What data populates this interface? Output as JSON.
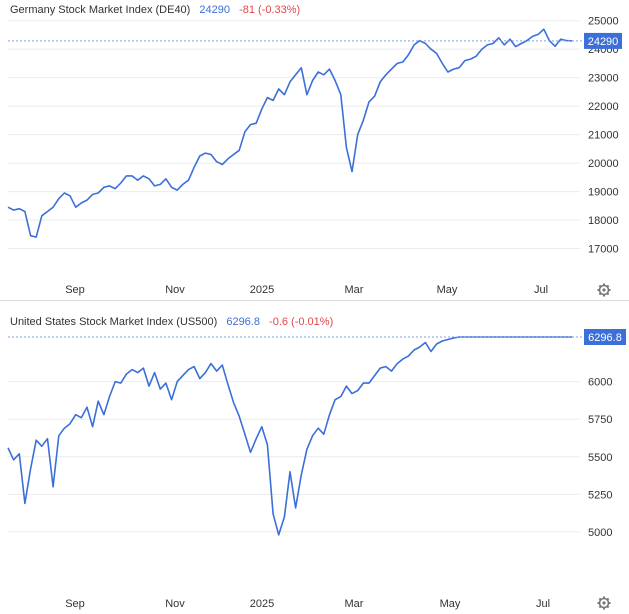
{
  "colors": {
    "line": "#3b6fd9",
    "grid": "#ebebeb",
    "ref": "#7c9fe6",
    "badge": "#3b6fd9",
    "change": "#e0464a"
  },
  "panels": [
    {
      "name": "Germany Stock Market Index (DE40)",
      "price": "24290",
      "change": "-81 (-0.33%)",
      "badge": "24290",
      "settings_icon": "gear-icon"
    },
    {
      "name": "United States Stock Market Index (US500)",
      "price": "6296.8",
      "change": "-0.6 (-0.01%)",
      "badge": "6296.8",
      "settings_icon": "gear-icon"
    }
  ],
  "chart_data": [
    {
      "type": "line",
      "title": "Germany Stock Market Index (DE40)",
      "x_tick_labels": [
        "Sep",
        "Nov",
        "2025",
        "Mar",
        "May",
        "Jul"
      ],
      "y_ticks": [
        17000,
        18000,
        19000,
        20000,
        21000,
        22000,
        23000,
        24000,
        25000
      ],
      "ylim": [
        16000,
        25200
      ],
      "last_value": 24290,
      "grid": true,
      "series": [
        {
          "x": [
            0.0,
            0.01,
            0.02,
            0.03,
            0.04,
            0.05,
            0.06,
            0.07,
            0.08,
            0.09,
            0.1,
            0.11,
            0.12,
            0.13,
            0.14,
            0.15,
            0.16,
            0.17,
            0.18,
            0.19,
            0.2,
            0.21,
            0.22,
            0.23,
            0.24,
            0.25,
            0.26,
            0.27,
            0.28,
            0.29,
            0.3,
            0.31,
            0.32,
            0.33,
            0.34,
            0.35,
            0.36,
            0.37,
            0.38,
            0.39,
            0.4,
            0.41,
            0.42,
            0.43,
            0.44,
            0.45,
            0.46,
            0.47,
            0.48,
            0.49,
            0.5,
            0.51,
            0.52,
            0.53,
            0.54,
            0.55,
            0.56,
            0.57,
            0.58,
            0.59,
            0.6,
            0.61,
            0.62,
            0.63,
            0.64,
            0.65,
            0.66,
            0.67,
            0.68,
            0.69,
            0.7,
            0.71,
            0.72,
            0.73,
            0.74,
            0.75,
            0.76,
            0.77,
            0.78,
            0.79,
            0.8,
            0.81,
            0.82,
            0.83,
            0.84,
            0.85,
            0.86,
            0.87,
            0.88,
            0.89,
            0.9,
            0.91,
            0.92,
            0.93,
            0.94,
            0.95,
            0.96,
            0.97,
            0.98,
            0.99,
            1.0
          ],
          "y": [
            18450,
            18350,
            18400,
            18300,
            17450,
            17400,
            18150,
            18300,
            18450,
            18750,
            18950,
            18850,
            18450,
            18600,
            18700,
            18900,
            18950,
            19150,
            19200,
            19100,
            19300,
            19550,
            19550,
            19400,
            19550,
            19450,
            19200,
            19250,
            19450,
            19150,
            19050,
            19250,
            19400,
            19850,
            20250,
            20350,
            20300,
            20050,
            19950,
            20150,
            20300,
            20450,
            21100,
            21350,
            21400,
            21900,
            22300,
            22200,
            22600,
            22400,
            22850,
            23100,
            23350,
            22400,
            22900,
            23200,
            23100,
            23300,
            22900,
            22400,
            20550,
            19700,
            21000,
            21500,
            22150,
            22350,
            22850,
            23100,
            23300,
            23500,
            23550,
            23800,
            24150,
            24300,
            24200,
            24000,
            23850,
            23500,
            23200,
            23300,
            23350,
            23600,
            23650,
            23750,
            24000,
            24150,
            24200,
            24400,
            24150,
            24350,
            24090,
            24200,
            24300,
            24450,
            24520,
            24700,
            24300,
            24100,
            24350,
            24300,
            24290
          ]
        }
      ]
    },
    {
      "type": "line",
      "title": "United States Stock Market Index (US500)",
      "x_tick_labels": [
        "Sep",
        "Nov",
        "2025",
        "Mar",
        "May",
        "Jul"
      ],
      "y_ticks": [
        5000,
        5250,
        5500,
        5750,
        6000
      ],
      "ylim": [
        4800,
        6350
      ],
      "last_value": 6296.8,
      "grid": true,
      "series": [
        {
          "x": [
            0.0,
            0.01,
            0.02,
            0.03,
            0.04,
            0.05,
            0.06,
            0.07,
            0.08,
            0.09,
            0.1,
            0.11,
            0.12,
            0.13,
            0.14,
            0.15,
            0.16,
            0.17,
            0.18,
            0.19,
            0.2,
            0.21,
            0.22,
            0.23,
            0.24,
            0.25,
            0.26,
            0.27,
            0.28,
            0.29,
            0.3,
            0.31,
            0.32,
            0.33,
            0.34,
            0.35,
            0.36,
            0.37,
            0.38,
            0.39,
            0.4,
            0.41,
            0.42,
            0.43,
            0.44,
            0.45,
            0.46,
            0.47,
            0.48,
            0.49,
            0.5,
            0.51,
            0.52,
            0.53,
            0.54,
            0.55,
            0.56,
            0.57,
            0.58,
            0.59,
            0.6,
            0.61,
            0.62,
            0.63,
            0.64,
            0.65,
            0.66,
            0.67,
            0.68,
            0.69,
            0.7,
            0.71,
            0.72,
            0.73,
            0.74,
            0.75,
            0.76,
            0.77,
            0.78,
            0.79,
            0.8,
            0.81,
            0.82,
            0.83,
            0.84,
            0.85,
            0.86,
            0.87,
            0.88,
            0.89,
            0.9,
            0.91,
            0.92,
            0.93,
            0.94,
            0.95,
            0.96,
            0.97,
            0.98,
            0.99,
            1.0
          ],
          "y": [
            5560,
            5480,
            5520,
            5190,
            5420,
            5610,
            5570,
            5620,
            5300,
            5640,
            5690,
            5720,
            5780,
            5760,
            5830,
            5700,
            5870,
            5780,
            5900,
            6000,
            5990,
            6050,
            6080,
            6060,
            6090,
            5970,
            6060,
            5950,
            5990,
            5880,
            6000,
            6040,
            6080,
            6100,
            6020,
            6060,
            6120,
            6070,
            6110,
            5980,
            5860,
            5770,
            5650,
            5530,
            5620,
            5700,
            5580,
            5120,
            4980,
            5100,
            5400,
            5160,
            5380,
            5550,
            5640,
            5690,
            5650,
            5780,
            5880,
            5900,
            5970,
            5920,
            5940,
            5990,
            5990,
            6040,
            6090,
            6100,
            6070,
            6120,
            6150,
            6170,
            6210,
            6230,
            6260,
            6200,
            6250,
            6270,
            6280,
            6290,
            6296.8,
            6296.8,
            6296.8,
            6296.8,
            6296.8,
            6296.8,
            6296.8,
            6296.8,
            6296.8,
            6296.8,
            6296.8,
            6296.8,
            6296.8,
            6296.8,
            6296.8,
            6296.8,
            6296.8,
            6296.8,
            6296.8,
            6296.8,
            6296.8
          ]
        }
      ]
    }
  ]
}
